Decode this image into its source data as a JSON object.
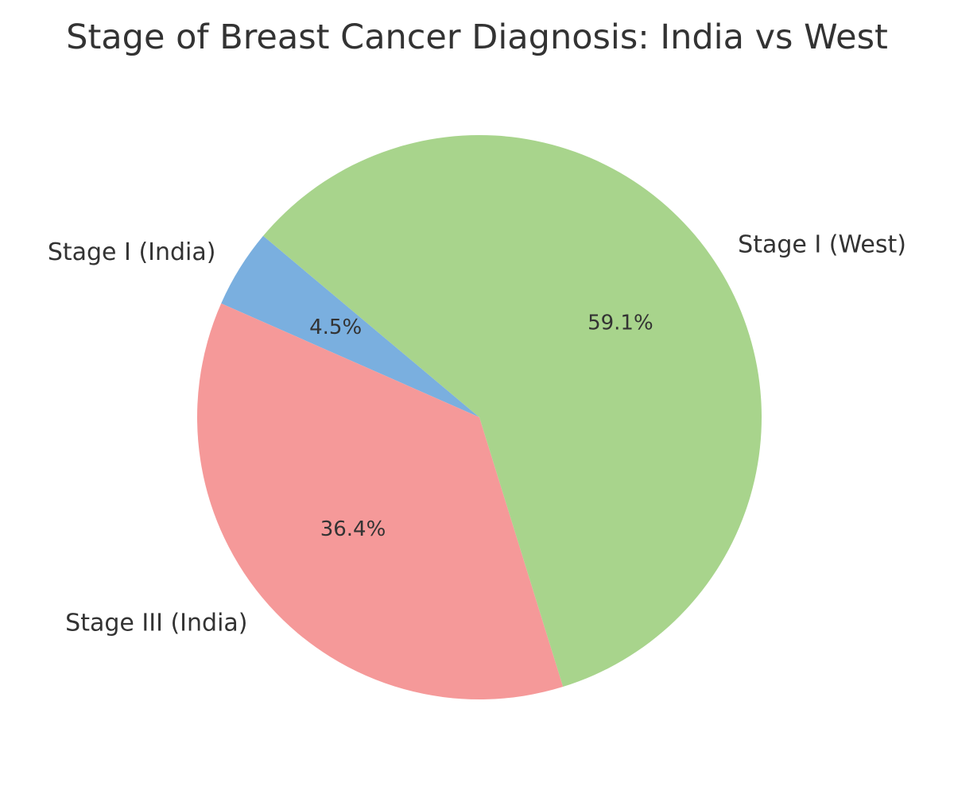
{
  "chart_data": {
    "type": "pie",
    "title": "Stage of Breast Cancer Diagnosis: India vs West",
    "categories": [
      "Stage I (India)",
      "Stage III (India)",
      "Stage I (West)"
    ],
    "values": [
      4.5,
      36.4,
      59.1
    ],
    "percent_labels": [
      "4.5%",
      "36.4%",
      "59.1%"
    ],
    "colors": [
      "#7aafdf",
      "#f59999",
      "#a8d48c"
    ],
    "start_angle_deg": 140,
    "direction": "counterclockwise",
    "legend": "none"
  }
}
